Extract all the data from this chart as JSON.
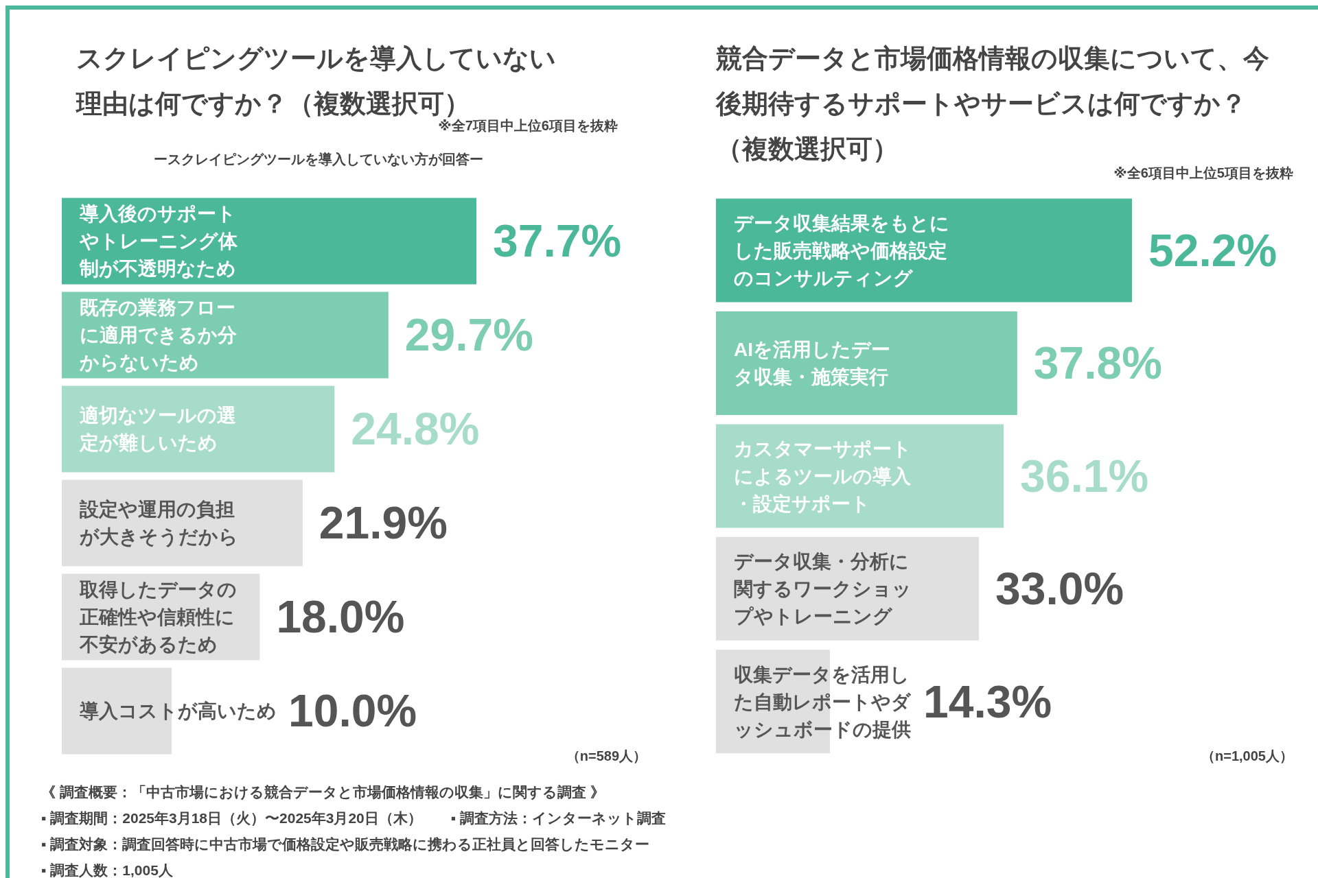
{
  "chart_data": [
    {
      "type": "bar",
      "orientation": "horizontal",
      "title": "スクレイピングツールを導入していない理由は何ですか？（複数選択可）",
      "subtitle": "ースクレイピングツールを導入していない方が回答ー",
      "categories": [
        "導入後のサポートやトレーニング体制が不透明なため",
        "既存の業務フローに適用できるか分からないため",
        "適切なツールの選定が難しいため",
        "設定や運用の負担が大きそうだから",
        "取得したデータの正確性や信頼性に不安があるため",
        "導入コストが高いため"
      ],
      "values": [
        37.7,
        29.7,
        24.8,
        21.9,
        18.0,
        10.0
      ],
      "value_labels": [
        "37.7%",
        "29.7%",
        "24.8%",
        "21.9%",
        "18.0%",
        "10.0%"
      ],
      "colors": [
        "#4cb89a",
        "#7dcdb3",
        "#a7dcca",
        "#e0e0e0",
        "#e0e0e0",
        "#e0e0e0"
      ],
      "annotations": [
        "※全7項目中上位6項目を抜粋",
        "（n=589人）",
        "《 調査概要：「中古市場における競合データと市場価格情報の収集」に関する調査 》",
        "▪ 調査期間：2025年3月18日（火）〜2025年3月20日（木）　　▪ 調査方法：インターネット調査",
        "▪ 調査対象：調査回答時に中古市場で価格設定や販売戦略に携わる正社員と回答したモニター",
        "▪ 調査人数：1,005人"
      ]
    },
    {
      "type": "bar",
      "orientation": "horizontal",
      "title": "競合データと市場価格情報の収集について、今後期待するサポートやサービスは何ですか？（複数選択可）",
      "categories": [
        "データ収集結果をもとにした販売戦略や価格設定のコンサルティング",
        "AIを活用したデータ収集・施策実行",
        "カスタマーサポートによるツールの導入・設定サポート",
        "データ収集・分析に関するワークショップやトレーニング",
        "収集データを活用した自動レポートやダッシュボードの提供"
      ],
      "values": [
        52.2,
        37.8,
        36.1,
        33.0,
        14.3
      ],
      "value_labels": [
        "52.2%",
        "37.8%",
        "36.1%",
        "33.0%",
        "14.3%"
      ],
      "colors": [
        "#4cb89a",
        "#7dcdb3",
        "#a7dcca",
        "#e0e0e0",
        "#e0e0e0"
      ],
      "annotations": [
        "※全6項目中上位5項目を抜粋",
        "（n=1,005人）"
      ]
    }
  ]
}
